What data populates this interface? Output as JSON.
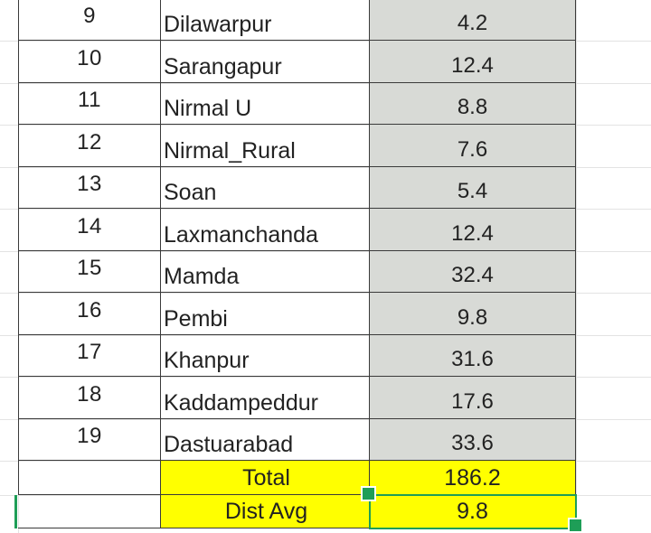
{
  "rows": [
    {
      "num": "9",
      "name": "Dilawarpur",
      "value": "4.2"
    },
    {
      "num": "10",
      "name": "Sarangapur",
      "value": "12.4"
    },
    {
      "num": "11",
      "name": "Nirmal U",
      "value": "8.8"
    },
    {
      "num": "12",
      "name": "Nirmal_Rural",
      "value": "7.6"
    },
    {
      "num": "13",
      "name": "Soan",
      "value": "5.4"
    },
    {
      "num": "14",
      "name": "Laxmanchanda",
      "value": "12.4"
    },
    {
      "num": "15",
      "name": "Mamda",
      "value": "32.4"
    },
    {
      "num": "16",
      "name": "Pembi",
      "value": "9.8"
    },
    {
      "num": "17",
      "name": "Khanpur",
      "value": "31.6"
    },
    {
      "num": "18",
      "name": "Kaddampeddur",
      "value": "17.6"
    },
    {
      "num": "19",
      "name": "Dastuarabad",
      "value": "33.6"
    }
  ],
  "summary": {
    "total_label": "Total",
    "total_value": "186.2",
    "avg_label": "Dist Avg",
    "avg_value": "9.8"
  },
  "colors": {
    "highlight": "#ffff00",
    "value_column": "#d8dad6",
    "selection": "#1e9e57"
  }
}
